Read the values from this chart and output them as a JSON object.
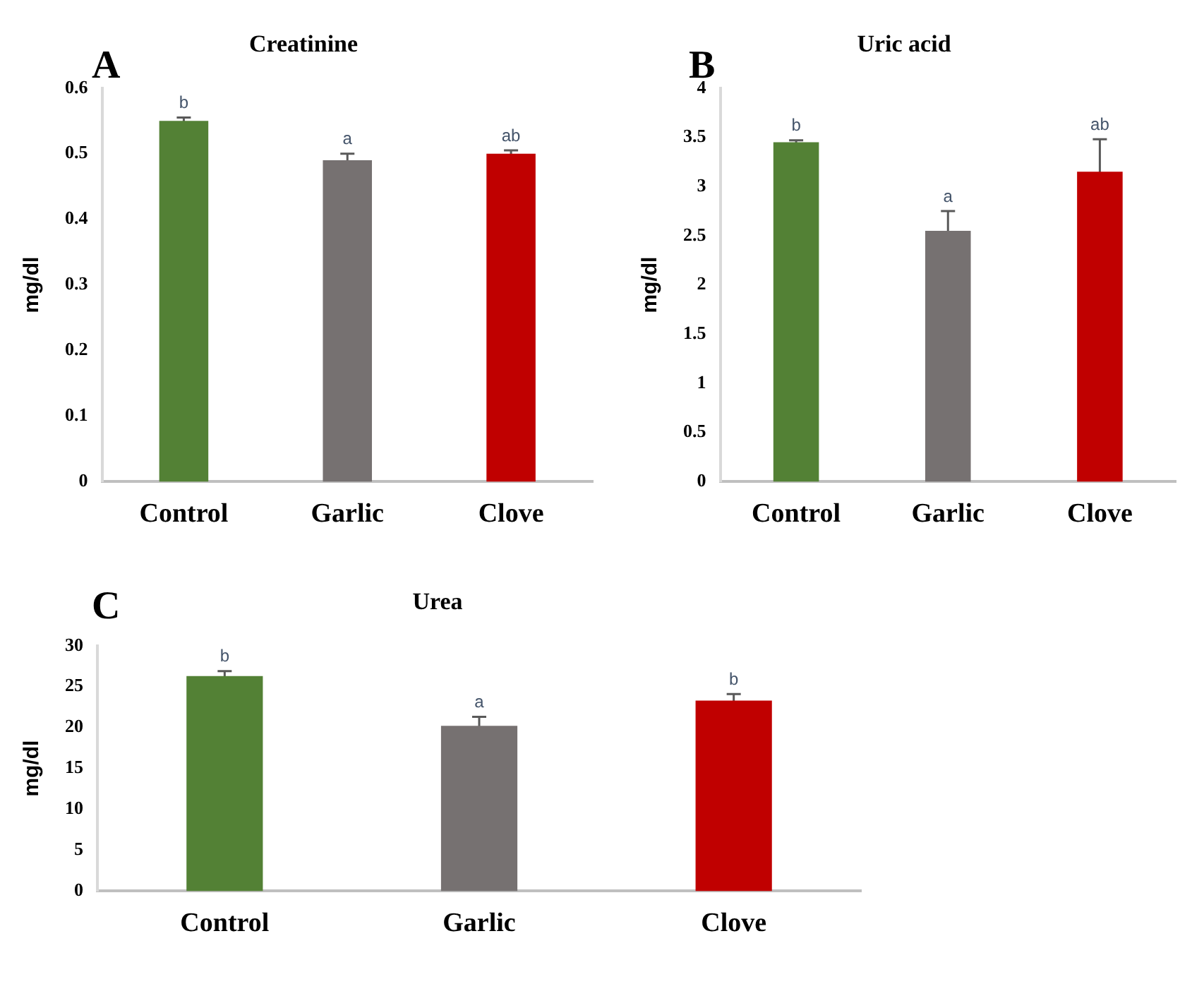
{
  "chart_data": [
    {
      "type": "bar",
      "title": "Creatinine",
      "ylabel": "mg/dl",
      "categories": [
        "Control",
        "Garlic",
        "Clove"
      ],
      "values": [
        0.55,
        0.49,
        0.5
      ],
      "errors": [
        0.005,
        0.01,
        0.005
      ],
      "colors": [
        "#538135",
        "#767171",
        "#c00000"
      ],
      "ylim": [
        0,
        0.6
      ],
      "yticks": [
        0,
        0.1,
        0.2,
        0.3,
        0.4,
        0.5,
        0.6
      ],
      "grid": false,
      "annotations": [
        "A",
        {
          "text": "b",
          "x": "Control",
          "y": 0.55
        },
        {
          "text": "a",
          "x": "Garlic",
          "y": 0.49
        },
        {
          "text": "ab",
          "x": "Clove",
          "y": 0.5
        }
      ]
    },
    {
      "type": "bar",
      "title": "Uric acid",
      "ylabel": "mg/dl",
      "categories": [
        "Control",
        "Garlic",
        "Clove"
      ],
      "values": [
        3.45,
        2.55,
        3.15
      ],
      "errors": [
        0.02,
        0.2,
        0.33
      ],
      "colors": [
        "#538135",
        "#767171",
        "#c00000"
      ],
      "ylim": [
        0,
        4
      ],
      "yticks": [
        0,
        0.5,
        1,
        1.5,
        2,
        2.5,
        3,
        3.5,
        4
      ],
      "grid": false,
      "annotations": [
        "B",
        {
          "text": "b",
          "x": "Control",
          "y": 3.45
        },
        {
          "text": "a",
          "x": "Garlic",
          "y": 2.55
        },
        {
          "text": "ab",
          "x": "Clove",
          "y": 3.15
        }
      ]
    },
    {
      "type": "bar",
      "title": "Urea",
      "ylabel": "mg/dl",
      "categories": [
        "Control",
        "Garlic",
        "Clove"
      ],
      "values": [
        26.3,
        20.2,
        23.3
      ],
      "errors": [
        0.6,
        1.1,
        0.8
      ],
      "colors": [
        "#538135",
        "#767171",
        "#c00000"
      ],
      "ylim": [
        0,
        30
      ],
      "yticks": [
        0,
        5,
        10,
        15,
        20,
        25,
        30
      ],
      "grid": false,
      "annotations": [
        "C",
        {
          "text": "b",
          "x": "Control",
          "y": 26.3
        },
        {
          "text": "a",
          "x": "Garlic",
          "y": 20.2
        },
        {
          "text": "b",
          "x": "Clove",
          "y": 23.3
        }
      ]
    }
  ]
}
